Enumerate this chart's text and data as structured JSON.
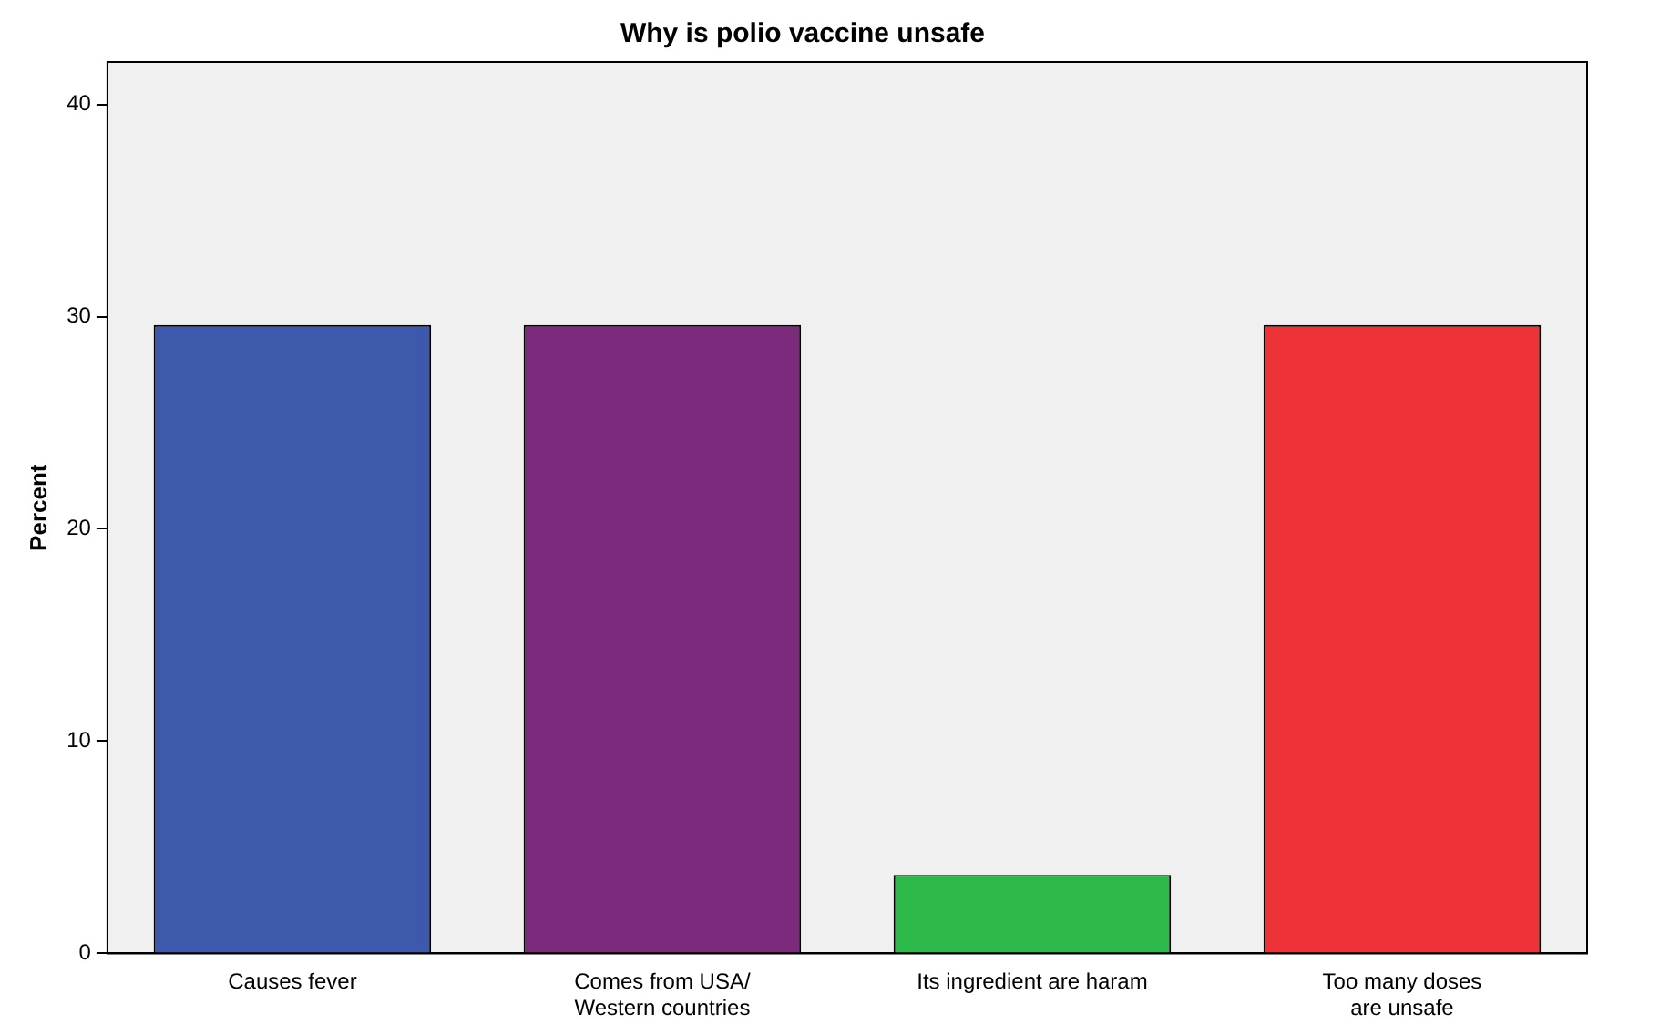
{
  "chart_data": {
    "type": "bar",
    "title": "Why is polio vaccine unsafe",
    "ylabel": "Percent",
    "categories": [
      "Causes fever",
      "Comes from USA/ Western countries",
      "Its ingredient are haram",
      "Too many doses are unsafe"
    ],
    "values": [
      29.6,
      29.6,
      3.7,
      29.6
    ],
    "colors": [
      "#3e58ac",
      "#7b2a7c",
      "#2db84a",
      "#ee3338"
    ],
    "ylim": [
      0,
      42
    ],
    "yticks": [
      0,
      10,
      20,
      30,
      40
    ],
    "grid": false,
    "legend": false
  }
}
